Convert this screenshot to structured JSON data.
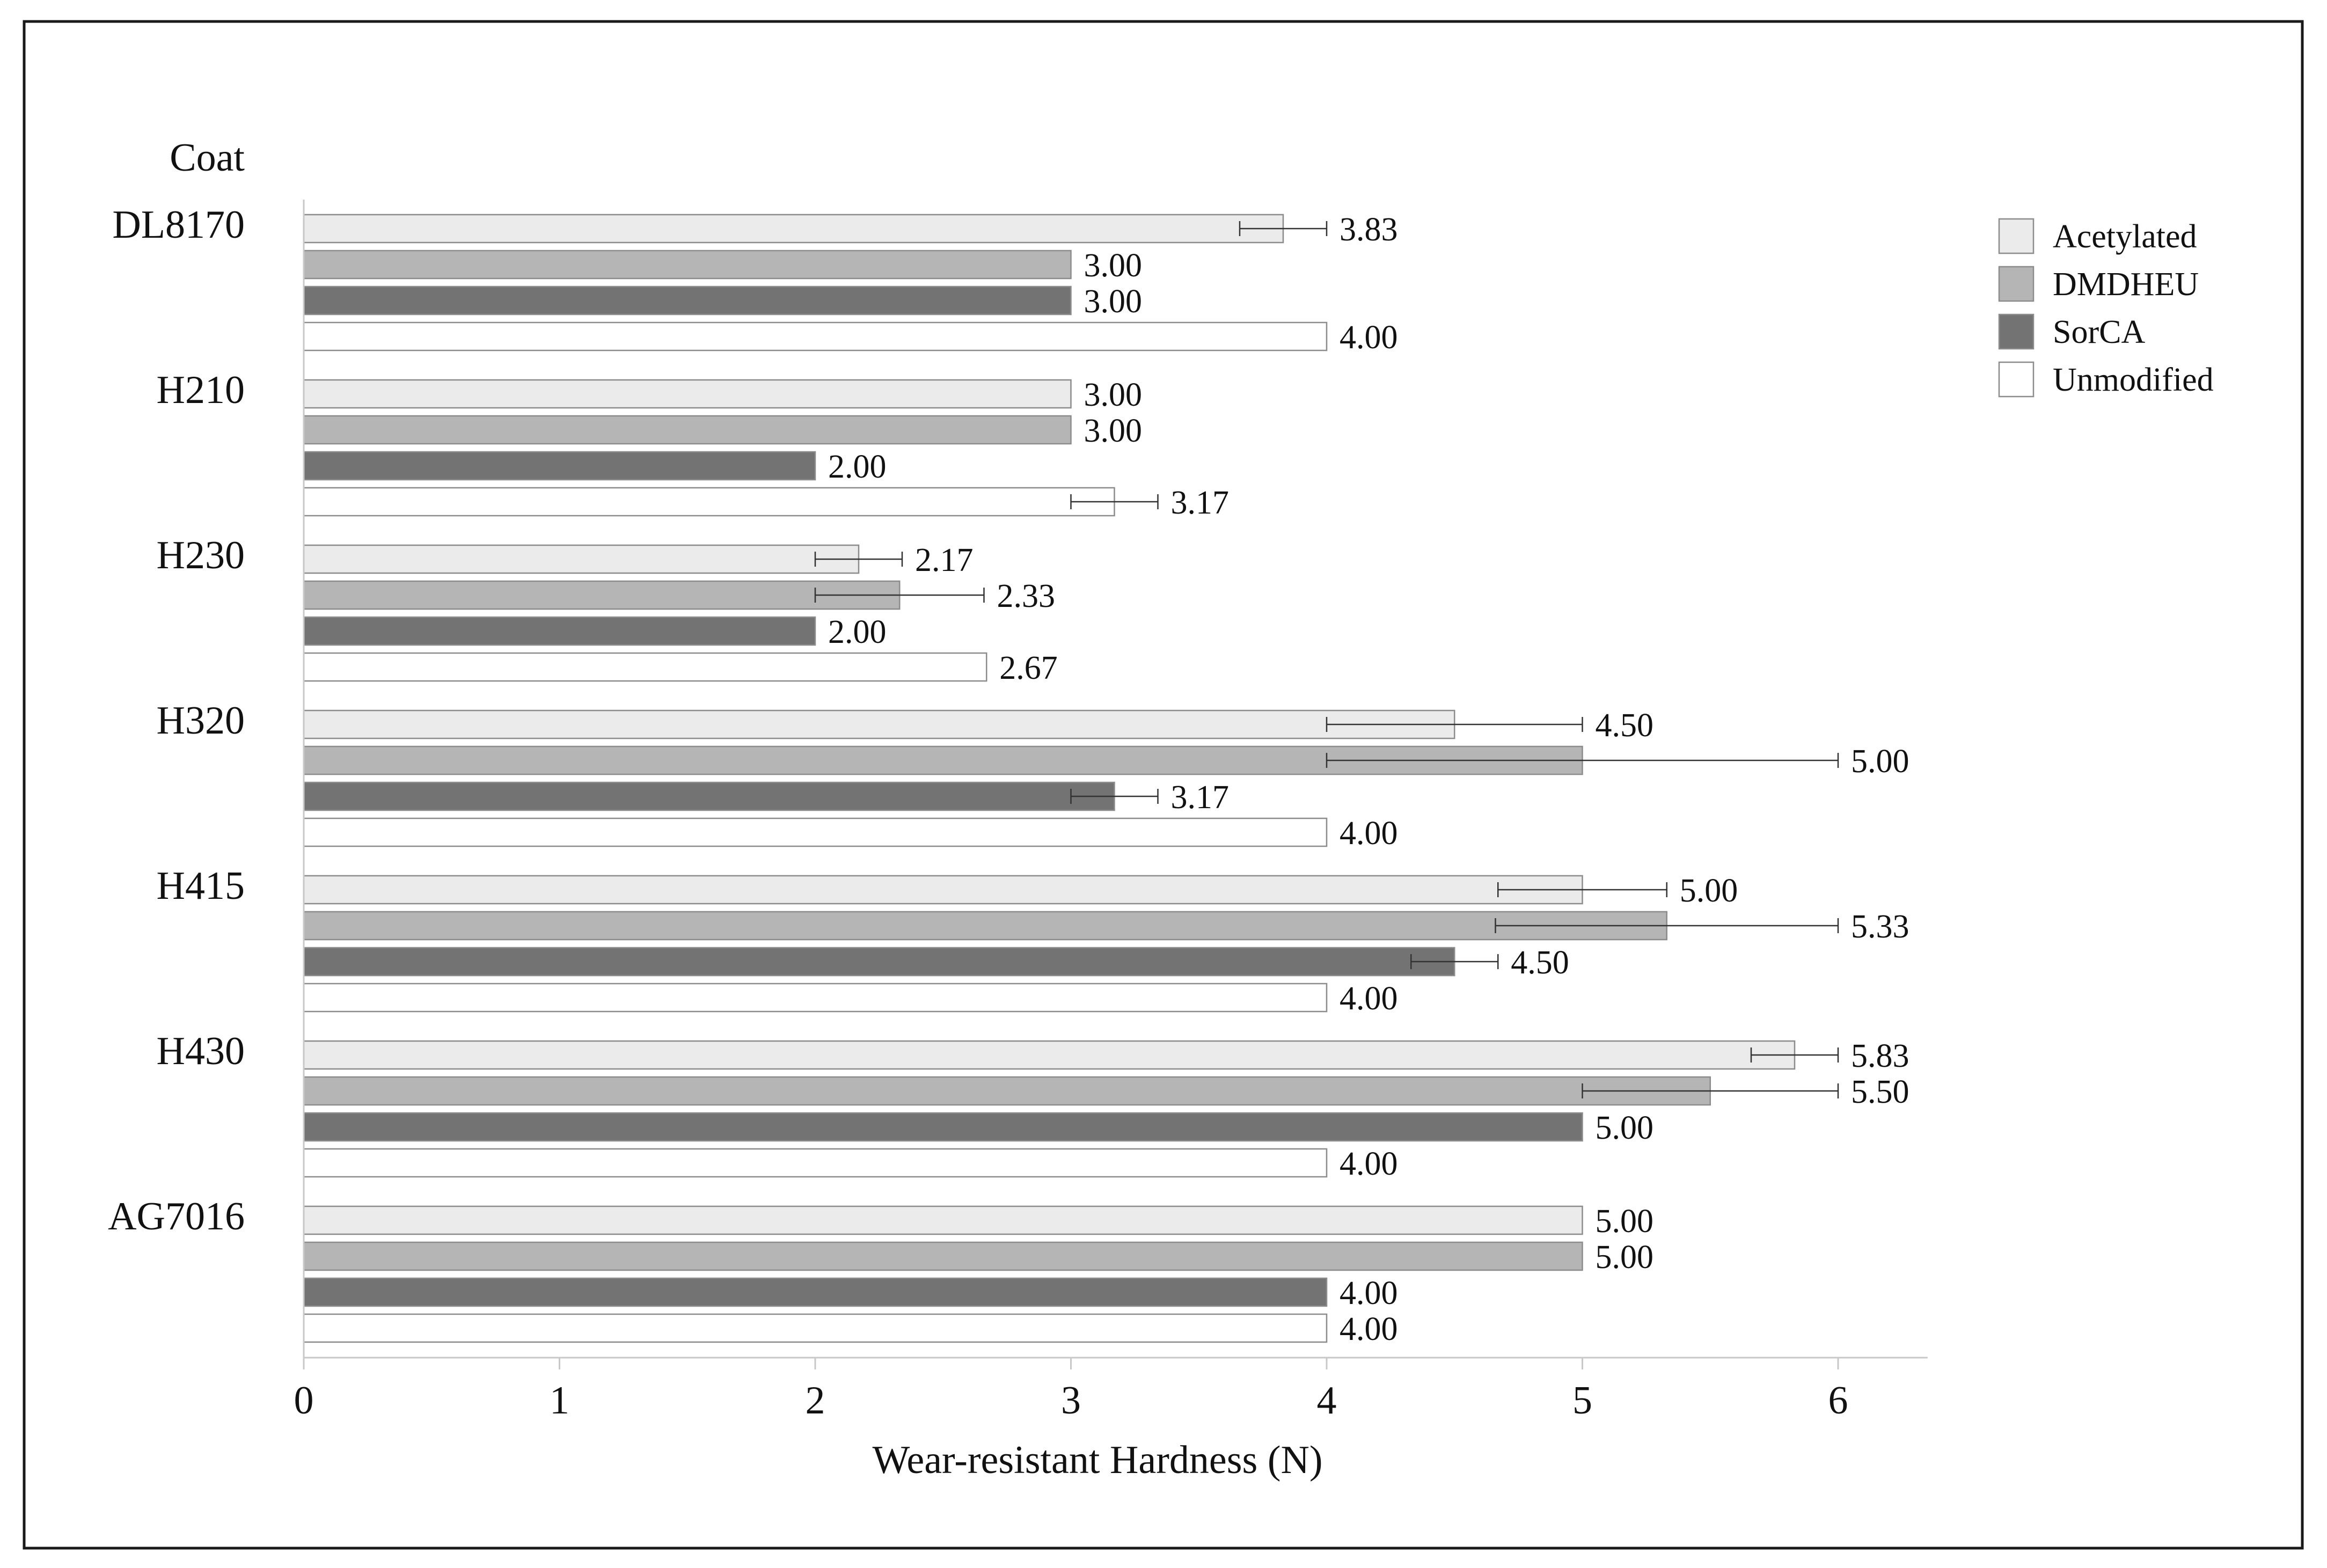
{
  "chart_data": {
    "type": "bar",
    "orientation": "horizontal",
    "ycaption": "Coat",
    "xlabel": "Wear-resistant Hardness (N)",
    "xlim": [
      0,
      6.35
    ],
    "xticks": [
      "0",
      "1",
      "2",
      "3",
      "4",
      "5",
      "6"
    ],
    "grid": false,
    "legend_position": "top-right",
    "categories": [
      "DL8170",
      "H210",
      "H230",
      "H320",
      "H415",
      "H430",
      "AG7016"
    ],
    "series": [
      {
        "name": "Acetylated",
        "color": "#ebebeb",
        "values": [
          3.83,
          3.0,
          2.17,
          4.5,
          5.0,
          5.83,
          5.0
        ],
        "labels": [
          "3.83",
          "3.00",
          "2.17",
          "4.50",
          "5.00",
          "5.83",
          "5.00"
        ],
        "error": [
          0.17,
          0,
          0.17,
          0.5,
          0.33,
          0.17,
          0
        ]
      },
      {
        "name": "DMDHEU",
        "color": "#b5b5b5",
        "values": [
          3.0,
          3.0,
          2.33,
          5.0,
          5.33,
          5.5,
          5.0
        ],
        "labels": [
          "3.00",
          "3.00",
          "2.33",
          "5.00",
          "5.33",
          "5.50",
          "5.00"
        ],
        "error": [
          0,
          0,
          0.33,
          1.0,
          0.67,
          0.5,
          0
        ]
      },
      {
        "name": "SorCA",
        "color": "#737373",
        "values": [
          3.0,
          2.0,
          2.0,
          3.17,
          4.5,
          5.0,
          4.0
        ],
        "labels": [
          "3.00",
          "2.00",
          "2.00",
          "3.17",
          "4.50",
          "5.00",
          "4.00"
        ],
        "error": [
          0,
          0,
          0,
          0.17,
          0.17,
          0,
          0
        ]
      },
      {
        "name": "Unmodified",
        "color": "#ffffff",
        "values": [
          4.0,
          3.17,
          2.67,
          4.0,
          4.0,
          4.0,
          4.0
        ],
        "labels": [
          "4.00",
          "3.17",
          "2.67",
          "4.00",
          "4.00",
          "4.00",
          "4.00"
        ],
        "error": [
          0,
          0.17,
          0,
          0,
          0,
          0,
          0
        ]
      }
    ]
  }
}
